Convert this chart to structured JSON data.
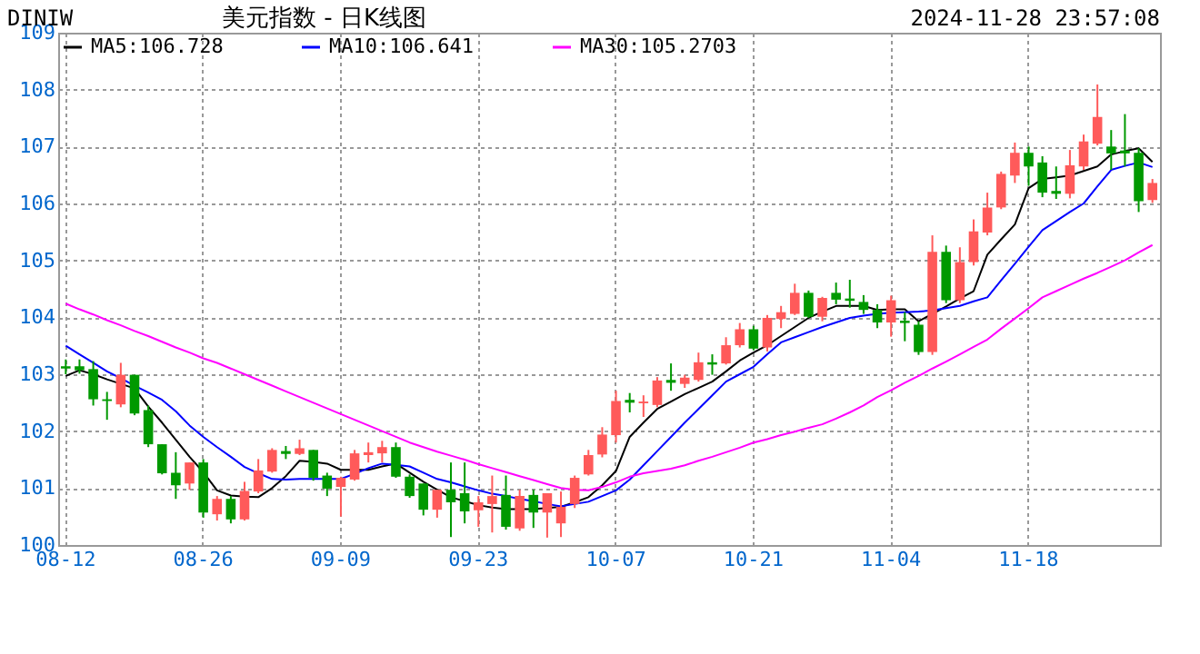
{
  "chart_data": {
    "type": "candlestick",
    "title": "美元指数 - 日K线图",
    "annotations": [
      "DINIW",
      "2024-11-28 23:57:08"
    ],
    "categories": [
      "08-12",
      null,
      null,
      null,
      null,
      null,
      null,
      null,
      null,
      null,
      "08-26",
      null,
      null,
      null,
      null,
      null,
      null,
      null,
      null,
      null,
      "09-09",
      null,
      null,
      null,
      null,
      null,
      null,
      null,
      null,
      null,
      "09-23",
      null,
      null,
      null,
      null,
      null,
      null,
      null,
      null,
      null,
      "10-07",
      null,
      null,
      null,
      null,
      null,
      null,
      null,
      null,
      null,
      "10-21",
      null,
      null,
      null,
      null,
      null,
      null,
      null,
      null,
      null,
      "11-04",
      null,
      null,
      null,
      null,
      null,
      null,
      null,
      null,
      null,
      "11-18",
      null,
      null,
      null,
      null,
      null,
      null,
      null,
      null,
      null
    ],
    "ohlc": [
      [
        103.14,
        103.26,
        103.0,
        103.1
      ],
      [
        103.14,
        103.26,
        103.01,
        103.07
      ],
      [
        103.09,
        103.23,
        102.45,
        102.56
      ],
      [
        102.56,
        102.69,
        102.2,
        102.53
      ],
      [
        102.47,
        103.2,
        102.42,
        102.99
      ],
      [
        102.99,
        102.99,
        102.28,
        102.31
      ],
      [
        102.37,
        102.45,
        101.72,
        101.77
      ],
      [
        101.77,
        101.77,
        101.24,
        101.26
      ],
      [
        101.27,
        101.63,
        100.81,
        101.05
      ],
      [
        101.08,
        101.45,
        100.97,
        101.45
      ],
      [
        101.45,
        101.51,
        100.48,
        100.57
      ],
      [
        100.54,
        100.86,
        100.43,
        100.81
      ],
      [
        100.81,
        100.86,
        100.38,
        100.45
      ],
      [
        100.45,
        101.11,
        100.43,
        100.95
      ],
      [
        100.94,
        101.51,
        100.91,
        101.31
      ],
      [
        101.29,
        101.7,
        101.27,
        101.67
      ],
      [
        101.65,
        101.74,
        101.51,
        101.6
      ],
      [
        101.6,
        101.85,
        101.58,
        101.7
      ],
      [
        101.67,
        101.67,
        101.13,
        101.18
      ],
      [
        101.22,
        101.27,
        100.86,
        100.99
      ],
      [
        101.02,
        101.2,
        100.5,
        101.18
      ],
      [
        101.15,
        101.67,
        101.13,
        101.61
      ],
      [
        101.58,
        101.8,
        101.45,
        101.63
      ],
      [
        101.61,
        101.83,
        101.45,
        101.72
      ],
      [
        101.72,
        101.8,
        101.18,
        101.2
      ],
      [
        101.2,
        101.24,
        100.83,
        100.86
      ],
      [
        101.08,
        101.08,
        100.52,
        100.62
      ],
      [
        100.62,
        100.97,
        100.48,
        100.97
      ],
      [
        100.97,
        101.45,
        100.14,
        100.75
      ],
      [
        100.91,
        101.45,
        100.38,
        100.59
      ],
      [
        100.61,
        100.86,
        100.32,
        100.75
      ],
      [
        100.72,
        101.22,
        100.22,
        100.86
      ],
      [
        100.88,
        101.22,
        100.27,
        100.32
      ],
      [
        100.29,
        100.97,
        100.25,
        100.86
      ],
      [
        100.88,
        100.97,
        100.3,
        100.57
      ],
      [
        100.57,
        100.91,
        100.13,
        100.91
      ],
      [
        100.38,
        100.94,
        100.14,
        100.67
      ],
      [
        100.72,
        101.22,
        100.65,
        101.18
      ],
      [
        101.24,
        101.67,
        101.22,
        101.58
      ],
      [
        101.59,
        102.07,
        101.54,
        101.94
      ],
      [
        101.93,
        102.71,
        101.8,
        102.53
      ],
      [
        102.55,
        102.67,
        102.33,
        102.5
      ],
      [
        102.49,
        102.63,
        102.25,
        102.52
      ],
      [
        102.46,
        102.95,
        102.42,
        102.89
      ],
      [
        102.9,
        103.19,
        102.71,
        102.85
      ],
      [
        102.83,
        102.99,
        102.76,
        102.94
      ],
      [
        102.9,
        103.38,
        102.87,
        103.21
      ],
      [
        103.21,
        103.35,
        102.99,
        103.17
      ],
      [
        103.19,
        103.65,
        103.17,
        103.51
      ],
      [
        103.51,
        103.9,
        103.47,
        103.79
      ],
      [
        103.79,
        103.85,
        103.42,
        103.45
      ],
      [
        103.47,
        104.04,
        103.4,
        103.99
      ],
      [
        103.97,
        104.2,
        103.81,
        104.09
      ],
      [
        104.06,
        104.59,
        104.04,
        104.43
      ],
      [
        104.43,
        104.47,
        103.99,
        104.01
      ],
      [
        104.01,
        104.36,
        103.93,
        104.34
      ],
      [
        104.43,
        104.61,
        104.23,
        104.31
      ],
      [
        104.33,
        104.66,
        104.17,
        104.29
      ],
      [
        104.27,
        104.39,
        104.06,
        104.13
      ],
      [
        104.13,
        104.23,
        103.81,
        103.91
      ],
      [
        103.91,
        104.38,
        103.66,
        104.3
      ],
      [
        103.94,
        104.09,
        103.58,
        103.9
      ],
      [
        103.87,
        103.93,
        103.34,
        103.39
      ],
      [
        103.39,
        105.44,
        103.34,
        105.15
      ],
      [
        105.15,
        105.26,
        104.25,
        104.3
      ],
      [
        104.3,
        105.23,
        104.25,
        104.97
      ],
      [
        104.97,
        105.72,
        104.91,
        105.51
      ],
      [
        105.49,
        106.19,
        105.44,
        105.93
      ],
      [
        105.93,
        106.56,
        105.9,
        106.52
      ],
      [
        106.49,
        107.07,
        106.36,
        106.89
      ],
      [
        106.89,
        107.0,
        106.31,
        106.65
      ],
      [
        106.72,
        106.83,
        106.11,
        106.19
      ],
      [
        106.22,
        106.65,
        106.08,
        106.17
      ],
      [
        106.17,
        106.94,
        106.09,
        106.67
      ],
      [
        106.65,
        107.21,
        106.59,
        107.09
      ],
      [
        107.05,
        108.09,
        107.02,
        107.52
      ],
      [
        107.0,
        107.29,
        106.59,
        106.88
      ],
      [
        106.93,
        107.57,
        106.65,
        106.88
      ],
      [
        106.89,
        106.97,
        105.85,
        106.04
      ],
      [
        106.06,
        106.43,
        106.01,
        106.36
      ]
    ],
    "colors": [
      "#009900",
      "#009900",
      "#009900",
      "#009900",
      "#ff5a5a",
      "#009900",
      "#009900",
      "#009900",
      "#009900",
      "#ff5a5a",
      "#009900",
      "#ff5a5a",
      "#009900",
      "#ff5a5a",
      "#ff5a5a",
      "#ff5a5a",
      "#009900",
      "#ff5a5a",
      "#009900",
      "#009900",
      "#ff5a5a",
      "#ff5a5a",
      "#ff5a5a",
      "#ff5a5a",
      "#009900",
      "#009900",
      "#009900",
      "#ff5a5a",
      "#009900",
      "#009900",
      "#ff5a5a",
      "#ff5a5a",
      "#009900",
      "#ff5a5a",
      "#009900",
      "#ff5a5a",
      "#ff5a5a",
      "#ff5a5a",
      "#ff5a5a",
      "#ff5a5a",
      "#ff5a5a",
      "#009900",
      "#ff5a5a",
      "#ff5a5a",
      "#009900",
      "#ff5a5a",
      "#ff5a5a",
      "#009900",
      "#ff5a5a",
      "#ff5a5a",
      "#009900",
      "#ff5a5a",
      "#ff5a5a",
      "#ff5a5a",
      "#009900",
      "#ff5a5a",
      "#009900",
      "#009900",
      "#009900",
      "#009900",
      "#ff5a5a",
      "#009900",
      "#009900",
      "#ff5a5a",
      "#009900",
      "#ff5a5a",
      "#ff5a5a",
      "#ff5a5a",
      "#ff5a5a",
      "#ff5a5a",
      "#009900",
      "#009900",
      "#009900",
      "#ff5a5a",
      "#ff5a5a",
      "#ff5a5a",
      "#009900",
      "#009900",
      "#009900",
      "#ff5a5a"
    ],
    "series": [
      {
        "name": "MA5:106.728",
        "type": "line",
        "color": "#000000",
        "values": [
          102.97,
          103.07,
          103.0,
          102.91,
          102.83,
          102.75,
          102.43,
          102.15,
          101.85,
          101.55,
          101.28,
          100.96,
          100.87,
          100.85,
          100.84,
          101.0,
          101.21,
          101.48,
          101.46,
          101.43,
          101.32,
          101.32,
          101.32,
          101.38,
          101.43,
          101.27,
          101.11,
          100.97,
          100.84,
          100.77,
          100.7,
          100.66,
          100.63,
          100.63,
          100.63,
          100.65,
          100.67,
          100.75,
          100.84,
          101.05,
          101.3,
          101.9,
          102.15,
          102.39,
          102.52,
          102.65,
          102.76,
          102.87,
          103.05,
          103.24,
          103.38,
          103.51,
          103.67,
          103.83,
          103.99,
          104.1,
          104.2,
          104.2,
          104.2,
          104.13,
          104.14,
          104.14,
          103.93,
          104.06,
          104.19,
          104.33,
          104.46,
          105.1,
          105.37,
          105.63,
          106.27,
          106.43,
          106.46,
          106.49,
          106.57,
          106.65,
          106.86,
          106.92,
          106.97,
          106.73
        ]
      },
      {
        "name": "MA10:106.641",
        "type": "line",
        "color": "#0000ff",
        "values": [
          103.5,
          103.35,
          103.2,
          103.05,
          102.93,
          102.8,
          102.68,
          102.55,
          102.35,
          102.1,
          101.9,
          101.72,
          101.55,
          101.37,
          101.26,
          101.16,
          101.15,
          101.16,
          101.16,
          101.16,
          101.16,
          101.25,
          101.35,
          101.43,
          101.41,
          101.38,
          101.27,
          101.16,
          101.1,
          101.03,
          100.96,
          100.9,
          100.86,
          100.81,
          100.77,
          100.72,
          100.68,
          100.72,
          100.76,
          100.86,
          100.96,
          101.15,
          101.4,
          101.65,
          101.9,
          102.15,
          102.39,
          102.63,
          102.87,
          103.0,
          103.13,
          103.35,
          103.56,
          103.65,
          103.74,
          103.83,
          103.91,
          103.99,
          104.03,
          104.06,
          104.08,
          104.09,
          104.1,
          104.12,
          104.16,
          104.2,
          104.28,
          104.35,
          104.65,
          104.94,
          105.24,
          105.53,
          105.69,
          105.85,
          106.0,
          106.3,
          106.59,
          106.66,
          106.72,
          106.64
        ]
      },
      {
        "name": "MA30:105.2703",
        "type": "line",
        "color": "#ff00ff",
        "values": [
          104.24,
          104.14,
          104.05,
          103.95,
          103.86,
          103.76,
          103.67,
          103.57,
          103.47,
          103.38,
          103.28,
          103.2,
          103.1,
          103.0,
          102.9,
          102.8,
          102.7,
          102.6,
          102.5,
          102.4,
          102.3,
          102.2,
          102.1,
          102.0,
          101.9,
          101.8,
          101.72,
          101.64,
          101.57,
          101.5,
          101.42,
          101.35,
          101.28,
          101.21,
          101.14,
          101.07,
          101.0,
          100.97,
          100.96,
          101.02,
          101.1,
          101.2,
          101.26,
          101.3,
          101.34,
          101.4,
          101.48,
          101.55,
          101.63,
          101.71,
          101.8,
          101.86,
          101.93,
          101.99,
          102.06,
          102.12,
          102.22,
          102.33,
          102.45,
          102.6,
          102.72,
          102.85,
          102.97,
          103.1,
          103.22,
          103.35,
          103.48,
          103.61,
          103.8,
          103.98,
          104.16,
          104.35,
          104.46,
          104.57,
          104.68,
          104.78,
          104.89,
          105.0,
          105.14,
          105.27
        ]
      }
    ],
    "ylim": [
      100,
      109
    ],
    "yticks": [
      100,
      101,
      102,
      103,
      104,
      105,
      106,
      107,
      108,
      109
    ],
    "grid": true,
    "legend": "top left"
  }
}
